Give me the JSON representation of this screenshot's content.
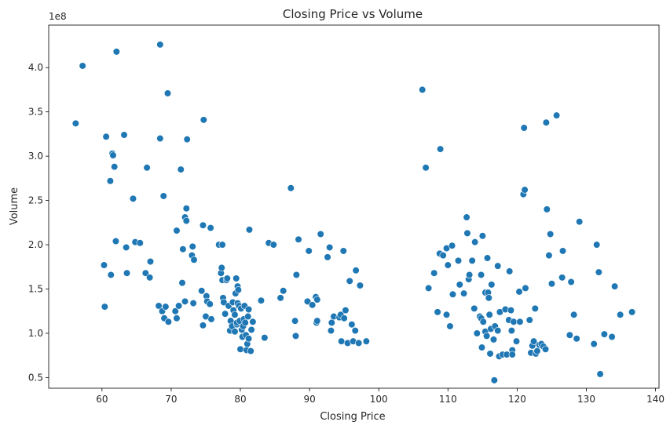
{
  "chart_data": {
    "type": "scatter",
    "title": "Closing Price vs Volume",
    "xlabel": "Closing Price",
    "ylabel": "Volume",
    "y_offset_label": "1e8",
    "xlim": [
      52.3,
      140.5
    ],
    "ylim": [
      0.38,
      4.48
    ],
    "x_ticks": [
      60,
      70,
      80,
      90,
      100,
      110,
      120,
      130,
      140
    ],
    "y_ticks": [
      0.5,
      1.0,
      1.5,
      2.0,
      2.5,
      3.0,
      3.5,
      4.0
    ],
    "y_tick_labels": [
      "0.5",
      "1.0",
      "1.5",
      "2.0",
      "2.5",
      "3.0",
      "3.5",
      "4.0"
    ],
    "grid": false,
    "point_color": "#1f77b4",
    "points": [
      [
        56.2,
        3.37
      ],
      [
        57.2,
        4.02
      ],
      [
        60.3,
        1.77
      ],
      [
        60.4,
        1.3
      ],
      [
        60.6,
        3.22
      ],
      [
        61.2,
        2.72
      ],
      [
        61.3,
        1.66
      ],
      [
        61.5,
        3.03
      ],
      [
        61.6,
        3.01
      ],
      [
        61.8,
        2.88
      ],
      [
        62.0,
        2.04
      ],
      [
        62.1,
        4.18
      ],
      [
        63.2,
        3.24
      ],
      [
        63.5,
        1.97
      ],
      [
        63.6,
        1.68
      ],
      [
        64.5,
        2.52
      ],
      [
        64.8,
        2.03
      ],
      [
        65.5,
        2.02
      ],
      [
        66.3,
        1.68
      ],
      [
        66.5,
        2.87
      ],
      [
        66.9,
        1.63
      ],
      [
        67.0,
        1.81
      ],
      [
        68.2,
        1.31
      ],
      [
        68.4,
        3.2
      ],
      [
        68.4,
        4.26
      ],
      [
        68.7,
        1.25
      ],
      [
        68.9,
        2.55
      ],
      [
        69.0,
        1.17
      ],
      [
        69.2,
        1.3
      ],
      [
        69.5,
        3.71
      ],
      [
        69.6,
        1.13
      ],
      [
        70.6,
        1.25
      ],
      [
        70.8,
        1.17
      ],
      [
        70.8,
        2.16
      ],
      [
        71.1,
        1.31
      ],
      [
        71.4,
        2.85
      ],
      [
        71.6,
        1.57
      ],
      [
        71.7,
        1.95
      ],
      [
        72.0,
        1.36
      ],
      [
        72.0,
        2.31
      ],
      [
        72.2,
        2.27
      ],
      [
        72.2,
        2.41
      ],
      [
        72.3,
        3.19
      ],
      [
        73.0,
        1.88
      ],
      [
        73.1,
        1.98
      ],
      [
        73.2,
        1.34
      ],
      [
        73.3,
        1.83
      ],
      [
        74.4,
        1.48
      ],
      [
        74.6,
        1.09
      ],
      [
        74.6,
        2.22
      ],
      [
        74.7,
        3.41
      ],
      [
        75.0,
        1.19
      ],
      [
        75.1,
        1.42
      ],
      [
        75.2,
        1.36
      ],
      [
        75.6,
        1.33
      ],
      [
        75.7,
        2.19
      ],
      [
        75.8,
        1.16
      ],
      [
        76.9,
        2.0
      ],
      [
        77.2,
        1.68
      ],
      [
        77.3,
        1.74
      ],
      [
        77.4,
        1.6
      ],
      [
        77.4,
        2.0
      ],
      [
        77.5,
        1.4
      ],
      [
        77.6,
        1.35
      ],
      [
        77.8,
        1.22
      ],
      [
        78.0,
        1.6
      ],
      [
        78.1,
        1.62
      ],
      [
        78.3,
        1.31
      ],
      [
        78.5,
        1.03
      ],
      [
        78.6,
        1.14
      ],
      [
        78.8,
        1.08
      ],
      [
        78.9,
        1.35
      ],
      [
        79.0,
        1.26
      ],
      [
        79.2,
        1.02
      ],
      [
        79.2,
        1.21
      ],
      [
        79.3,
        1.45
      ],
      [
        79.4,
        1.62
      ],
      [
        79.5,
        1.1
      ],
      [
        79.5,
        1.12
      ],
      [
        79.6,
        1.53
      ],
      [
        79.6,
        1.34
      ],
      [
        79.7,
        1.49
      ],
      [
        79.8,
        1.31
      ],
      [
        79.9,
        1.14
      ],
      [
        80.0,
        0.82
      ],
      [
        80.1,
        1.28
      ],
      [
        80.2,
        1.04
      ],
      [
        80.3,
        0.96
      ],
      [
        80.4,
        1.08
      ],
      [
        80.5,
        1.16
      ],
      [
        80.6,
        1.31
      ],
      [
        80.7,
        1.12
      ],
      [
        80.8,
        0.98
      ],
      [
        80.9,
        0.81
      ],
      [
        81.0,
        0.88
      ],
      [
        81.1,
        1.19
      ],
      [
        81.2,
        0.94
      ],
      [
        81.2,
        1.27
      ],
      [
        81.3,
        2.17
      ],
      [
        81.5,
        0.8
      ],
      [
        81.6,
        1.04
      ],
      [
        81.8,
        1.13
      ],
      [
        83.0,
        1.37
      ],
      [
        83.5,
        0.95
      ],
      [
        84.1,
        2.02
      ],
      [
        84.8,
        2.0
      ],
      [
        85.8,
        1.4
      ],
      [
        86.2,
        1.48
      ],
      [
        87.3,
        2.64
      ],
      [
        87.9,
        1.14
      ],
      [
        88.0,
        0.97
      ],
      [
        88.1,
        1.66
      ],
      [
        88.4,
        2.06
      ],
      [
        89.7,
        1.36
      ],
      [
        89.9,
        1.93
      ],
      [
        90.4,
        1.32
      ],
      [
        90.9,
        1.41
      ],
      [
        91.0,
        1.12
      ],
      [
        91.1,
        1.38
      ],
      [
        91.1,
        1.14
      ],
      [
        91.6,
        2.12
      ],
      [
        92.6,
        1.86
      ],
      [
        92.9,
        1.97
      ],
      [
        93.1,
        1.03
      ],
      [
        93.2,
        1.12
      ],
      [
        93.5,
        1.19
      ],
      [
        94.3,
        1.18
      ],
      [
        94.5,
        1.21
      ],
      [
        94.6,
        0.91
      ],
      [
        94.9,
        1.93
      ],
      [
        95.0,
        1.17
      ],
      [
        95.2,
        1.26
      ],
      [
        95.5,
        0.89
      ],
      [
        95.8,
        1.59
      ],
      [
        96.1,
        1.1
      ],
      [
        96.3,
        0.91
      ],
      [
        96.6,
        1.03
      ],
      [
        96.7,
        1.71
      ],
      [
        97.1,
        0.89
      ],
      [
        97.3,
        1.54
      ],
      [
        98.2,
        0.91
      ],
      [
        106.3,
        3.75
      ],
      [
        106.8,
        2.87
      ],
      [
        107.2,
        1.51
      ],
      [
        108.0,
        1.68
      ],
      [
        108.5,
        1.24
      ],
      [
        108.8,
        1.9
      ],
      [
        108.9,
        3.08
      ],
      [
        109.3,
        1.88
      ],
      [
        109.8,
        1.21
      ],
      [
        109.8,
        1.96
      ],
      [
        110.0,
        1.77
      ],
      [
        110.3,
        1.08
      ],
      [
        110.6,
        1.99
      ],
      [
        110.7,
        1.44
      ],
      [
        111.5,
        1.82
      ],
      [
        111.7,
        1.55
      ],
      [
        112.3,
        1.45
      ],
      [
        112.7,
        2.31
      ],
      [
        112.8,
        2.13
      ],
      [
        113.0,
        1.61
      ],
      [
        113.1,
        1.66
      ],
      [
        113.5,
        1.82
      ],
      [
        113.8,
        1.28
      ],
      [
        113.9,
        2.03
      ],
      [
        114.2,
        1.0
      ],
      [
        114.6,
        1.19
      ],
      [
        114.8,
        1.66
      ],
      [
        114.8,
        1.17
      ],
      [
        114.9,
        0.84
      ],
      [
        115.0,
        2.1
      ],
      [
        115.1,
        1.13
      ],
      [
        115.4,
        1.46
      ],
      [
        115.4,
        1.02
      ],
      [
        115.6,
        0.97
      ],
      [
        115.7,
        1.85
      ],
      [
        115.8,
        1.46
      ],
      [
        115.9,
        1.4
      ],
      [
        116.0,
        1.21
      ],
      [
        116.1,
        0.77
      ],
      [
        116.2,
        1.05
      ],
      [
        116.3,
        1.55
      ],
      [
        116.6,
        0.93
      ],
      [
        116.7,
        0.47
      ],
      [
        116.8,
        1.08
      ],
      [
        117.2,
        1.76
      ],
      [
        117.2,
        1.03
      ],
      [
        117.4,
        0.74
      ],
      [
        117.5,
        1.24
      ],
      [
        117.9,
        0.76
      ],
      [
        118.3,
        1.27
      ],
      [
        118.5,
        0.76
      ],
      [
        118.8,
        1.15
      ],
      [
        118.9,
        1.7
      ],
      [
        119.1,
        1.26
      ],
      [
        119.2,
        1.03
      ],
      [
        119.3,
        0.81
      ],
      [
        119.3,
        0.76
      ],
      [
        119.5,
        1.13
      ],
      [
        119.9,
        0.91
      ],
      [
        120.3,
        1.47
      ],
      [
        120.4,
        1.13
      ],
      [
        120.9,
        2.57
      ],
      [
        121.0,
        3.32
      ],
      [
        121.1,
        2.62
      ],
      [
        121.2,
        1.51
      ],
      [
        121.8,
        1.15
      ],
      [
        122.0,
        0.78
      ],
      [
        122.2,
        0.86
      ],
      [
        122.4,
        0.91
      ],
      [
        122.6,
        1.28
      ],
      [
        122.7,
        0.77
      ],
      [
        122.9,
        0.8
      ],
      [
        123.2,
        0.87
      ],
      [
        123.5,
        0.88
      ],
      [
        123.8,
        0.85
      ],
      [
        124.1,
        0.82
      ],
      [
        124.2,
        3.38
      ],
      [
        124.3,
        2.4
      ],
      [
        124.6,
        1.88
      ],
      [
        124.8,
        2.12
      ],
      [
        125.0,
        1.56
      ],
      [
        125.7,
        3.46
      ],
      [
        126.5,
        1.63
      ],
      [
        126.6,
        1.93
      ],
      [
        127.6,
        0.98
      ],
      [
        127.8,
        1.58
      ],
      [
        128.2,
        1.21
      ],
      [
        128.6,
        0.94
      ],
      [
        129.0,
        2.26
      ],
      [
        131.1,
        0.88
      ],
      [
        131.5,
        2.0
      ],
      [
        131.8,
        1.69
      ],
      [
        132.0,
        0.54
      ],
      [
        132.6,
        0.99
      ],
      [
        133.7,
        0.96
      ],
      [
        134.1,
        1.53
      ],
      [
        134.9,
        1.21
      ],
      [
        136.6,
        1.24
      ]
    ]
  }
}
